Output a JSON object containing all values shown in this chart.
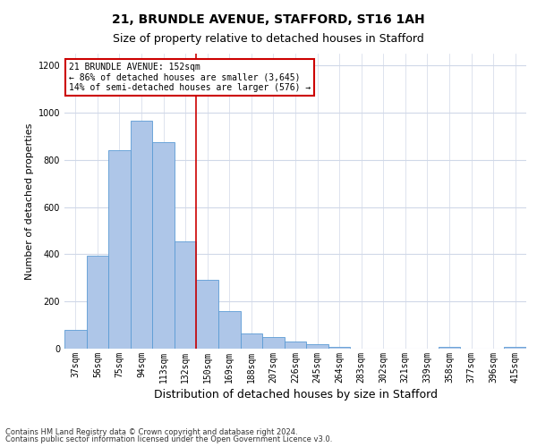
{
  "title1": "21, BRUNDLE AVENUE, STAFFORD, ST16 1AH",
  "title2": "Size of property relative to detached houses in Stafford",
  "xlabel": "Distribution of detached houses by size in Stafford",
  "ylabel": "Number of detached properties",
  "categories": [
    "37sqm",
    "56sqm",
    "75sqm",
    "94sqm",
    "113sqm",
    "132sqm",
    "150sqm",
    "169sqm",
    "188sqm",
    "207sqm",
    "226sqm",
    "245sqm",
    "264sqm",
    "283sqm",
    "302sqm",
    "321sqm",
    "339sqm",
    "358sqm",
    "377sqm",
    "396sqm",
    "415sqm"
  ],
  "values": [
    80,
    395,
    840,
    965,
    875,
    455,
    290,
    160,
    65,
    48,
    30,
    20,
    8,
    0,
    0,
    0,
    0,
    8,
    0,
    0,
    8
  ],
  "bar_color": "#aec6e8",
  "bar_edge_color": "#5b9bd5",
  "ref_line_index": 6,
  "ref_line_color": "#cc0000",
  "ylim": [
    0,
    1250
  ],
  "yticks": [
    0,
    200,
    400,
    600,
    800,
    1000,
    1200
  ],
  "annotation_text": "21 BRUNDLE AVENUE: 152sqm\n← 86% of detached houses are smaller (3,645)\n14% of semi-detached houses are larger (576) →",
  "annotation_box_color": "#ffffff",
  "annotation_box_edge": "#cc0000",
  "footnote1": "Contains HM Land Registry data © Crown copyright and database right 2024.",
  "footnote2": "Contains public sector information licensed under the Open Government Licence v3.0.",
  "background_color": "#ffffff",
  "grid_color": "#d0d8e8",
  "title1_fontsize": 10,
  "title2_fontsize": 9,
  "xlabel_fontsize": 9,
  "ylabel_fontsize": 8,
  "tick_fontsize": 7,
  "ann_fontsize": 7,
  "footnote_fontsize": 6
}
